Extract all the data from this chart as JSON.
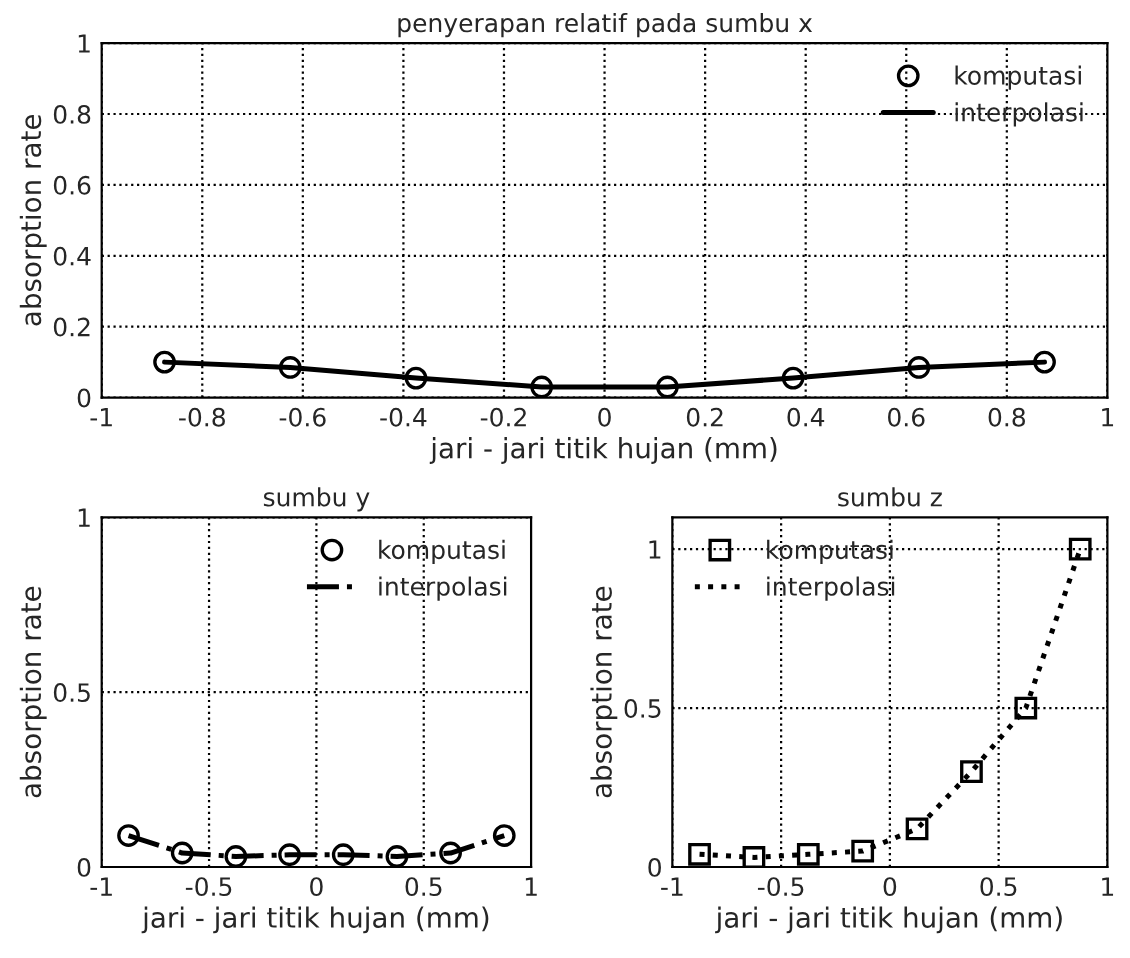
{
  "chart_data": [
    {
      "type": "line",
      "title": "penyerapan relatif pada sumbu x",
      "xlabel": "jari - jari titik hujan (mm)",
      "ylabel": "absorption rate",
      "xlim": [
        -1,
        1
      ],
      "ylim": [
        0,
        1
      ],
      "xticks": [
        -1,
        -0.8,
        -0.6,
        -0.4,
        -0.2,
        0,
        0.2,
        0.4,
        0.6,
        0.8,
        1
      ],
      "yticks": [
        0,
        0.2,
        0.4,
        0.6,
        0.8,
        1
      ],
      "grid": true,
      "legend": "top right",
      "x": [
        -0.875,
        -0.625,
        -0.375,
        -0.125,
        0.125,
        0.375,
        0.625,
        0.875
      ],
      "series": [
        {
          "name": "komputasi",
          "type": "scatter",
          "marker": "circle",
          "color": "#000000",
          "values": [
            0.1,
            0.085,
            0.055,
            0.03,
            0.03,
            0.055,
            0.085,
            0.1
          ]
        },
        {
          "name": "interpolasi",
          "marker": "none",
          "line_style": "solid",
          "color": "#000000",
          "values": [
            0.1,
            0.085,
            0.055,
            0.03,
            0.03,
            0.055,
            0.085,
            0.1
          ]
        }
      ]
    },
    {
      "type": "line",
      "title": "sumbu y",
      "xlabel": "jari - jari titik hujan (mm)",
      "ylabel": "absorption rate",
      "xlim": [
        -1,
        1
      ],
      "ylim": [
        0,
        1
      ],
      "xticks": [
        -1,
        -0.5,
        0,
        0.5,
        1
      ],
      "yticks": [
        0,
        0.5,
        1
      ],
      "grid": true,
      "legend": "top right",
      "x": [
        -0.875,
        -0.625,
        -0.375,
        -0.125,
        0.125,
        0.375,
        0.625,
        0.875
      ],
      "series": [
        {
          "name": "komputasi",
          "type": "scatter",
          "marker": "circle",
          "color": "#000000",
          "values": [
            0.09,
            0.04,
            0.03,
            0.035,
            0.035,
            0.03,
            0.04,
            0.09
          ]
        },
        {
          "name": "interpolasi",
          "marker": "none",
          "line_style": "dashed",
          "color": "#000000",
          "values": [
            0.09,
            0.04,
            0.03,
            0.035,
            0.035,
            0.03,
            0.04,
            0.09
          ]
        }
      ]
    },
    {
      "type": "line",
      "title": "sumbu z",
      "xlabel": "jari - jari titik hujan (mm)",
      "ylabel": "absorption rate",
      "xlim": [
        -1,
        1
      ],
      "ylim": [
        0,
        1.1
      ],
      "xticks": [
        -1,
        -0.5,
        0,
        0.5,
        1
      ],
      "yticks": [
        0,
        0.5,
        1
      ],
      "grid": true,
      "legend": "top left",
      "x": [
        -0.875,
        -0.625,
        -0.375,
        -0.125,
        0.125,
        0.375,
        0.625,
        0.875
      ],
      "series": [
        {
          "name": "komputasi",
          "type": "scatter",
          "marker": "square",
          "color": "#000000",
          "values": [
            0.04,
            0.03,
            0.04,
            0.05,
            0.12,
            0.3,
            0.5,
            1.0
          ]
        },
        {
          "name": "interpolasi",
          "marker": "none",
          "line_style": "dotted",
          "color": "#000000",
          "values": [
            0.04,
            0.03,
            0.04,
            0.05,
            0.12,
            0.3,
            0.5,
            1.0
          ]
        }
      ]
    }
  ]
}
